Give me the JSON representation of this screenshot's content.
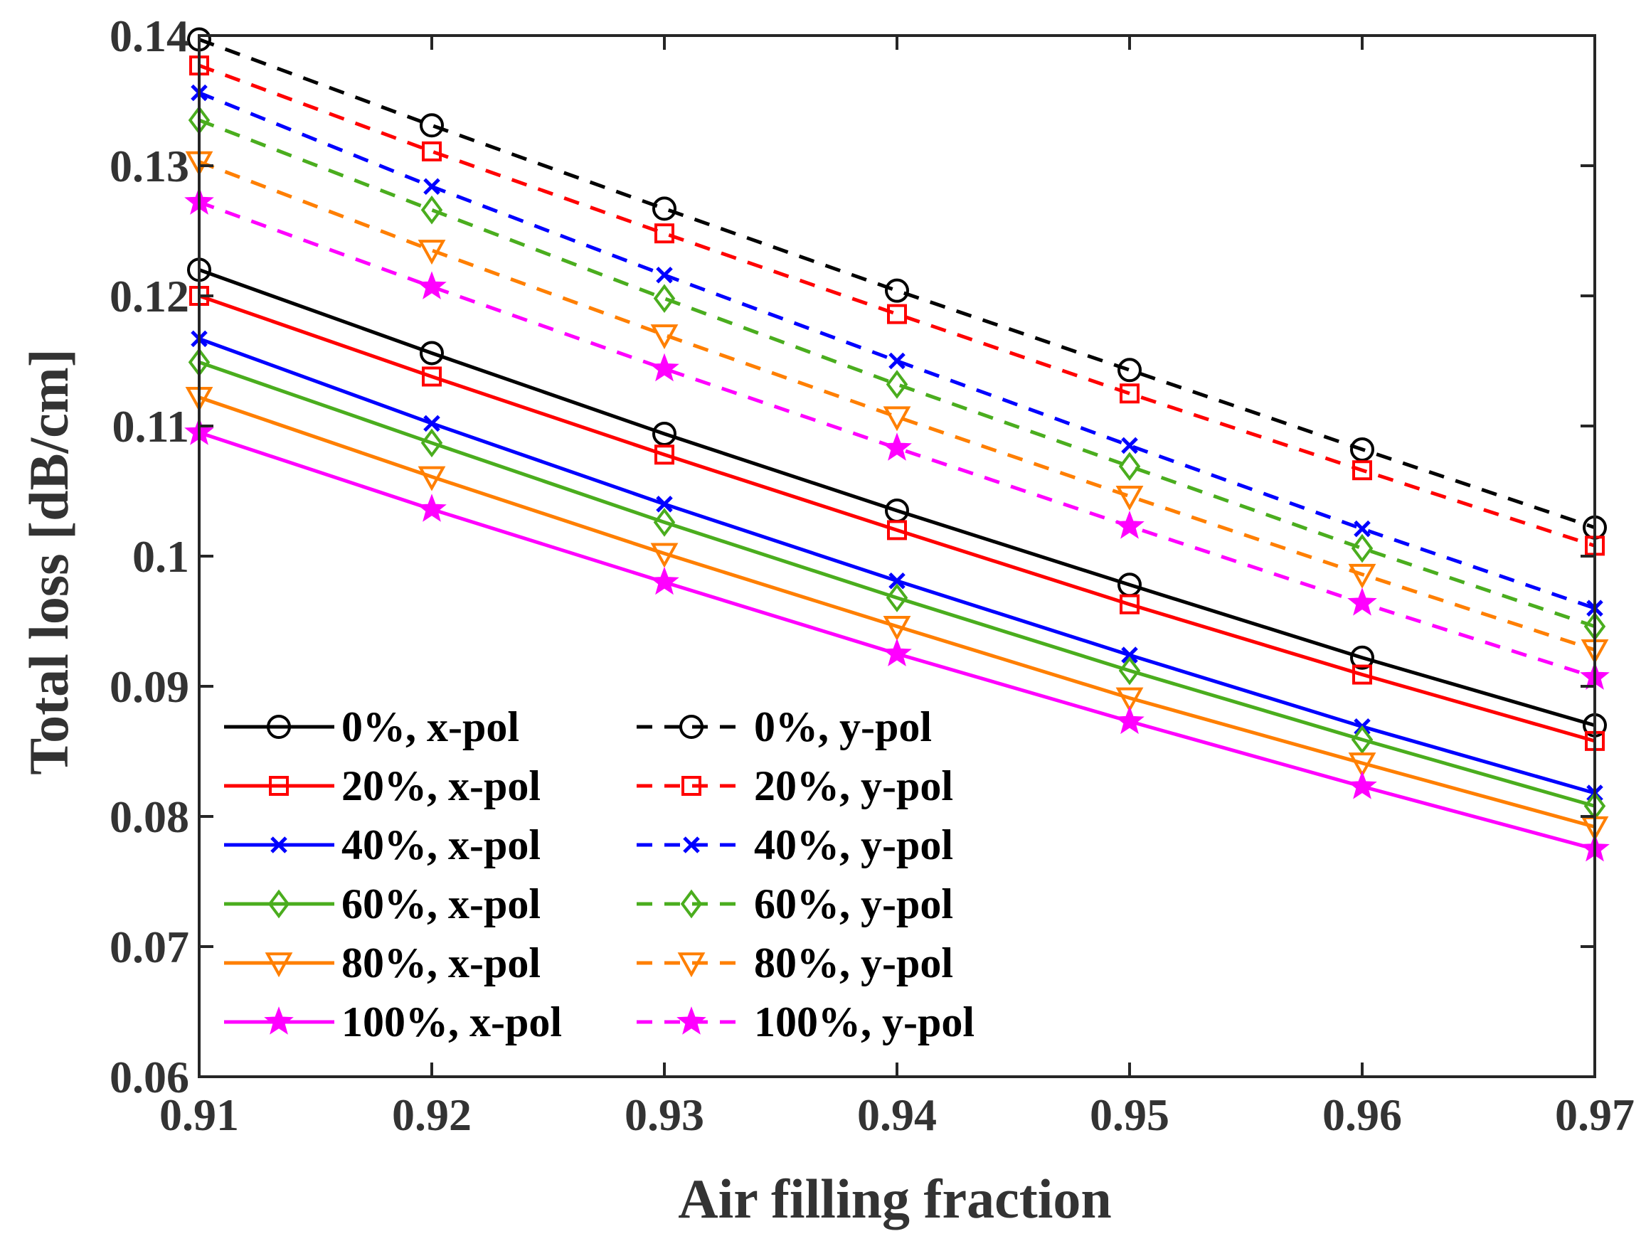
{
  "chart_data": {
    "type": "line",
    "title": "",
    "xlabel": "Air filling fraction",
    "ylabel": "Total loss [dB/cm]",
    "xlim": [
      0.91,
      0.97
    ],
    "ylim": [
      0.06,
      0.14
    ],
    "x": [
      0.91,
      0.92,
      0.93,
      0.94,
      0.95,
      0.96,
      0.97
    ],
    "x_tick_labels": [
      "0.91",
      "0.92",
      "0.93",
      "0.94",
      "0.95",
      "0.96",
      "0.97"
    ],
    "y_ticks": [
      0.06,
      0.07,
      0.08,
      0.09,
      0.1,
      0.11,
      0.12,
      0.13,
      0.14
    ],
    "y_tick_labels": [
      "0.06",
      "0.07",
      "0.08",
      "0.09",
      "0.1",
      "0.11",
      "0.12",
      "0.13",
      "0.14"
    ],
    "grid": false,
    "legend_position": "bottom-left",
    "series": [
      {
        "name": "0%, x-pol",
        "color": "#000000",
        "marker": "circle",
        "dash": "solid",
        "values": [
          0.122,
          0.1156,
          0.1094,
          0.1035,
          0.0978,
          0.0922,
          0.087
        ]
      },
      {
        "name": "20%, x-pol",
        "color": "#ff0000",
        "marker": "square",
        "dash": "solid",
        "values": [
          0.12,
          0.1138,
          0.1078,
          0.102,
          0.0963,
          0.0909,
          0.0858
        ]
      },
      {
        "name": "40%, x-pol",
        "color": "#0000ff",
        "marker": "x",
        "dash": "solid",
        "values": [
          0.1167,
          0.1102,
          0.104,
          0.0981,
          0.0924,
          0.0869,
          0.0818
        ]
      },
      {
        "name": "60%, x-pol",
        "color": "#4aad1e",
        "marker": "diamond",
        "dash": "solid",
        "values": [
          0.1149,
          0.1087,
          0.1026,
          0.0968,
          0.0912,
          0.0859,
          0.0808
        ]
      },
      {
        "name": "80%, x-pol",
        "color": "#ff7f00",
        "marker": "triangle-down",
        "dash": "solid",
        "values": [
          0.1122,
          0.1061,
          0.1002,
          0.0946,
          0.0891,
          0.0841,
          0.0792
        ]
      },
      {
        "name": "100%, x-pol",
        "color": "#ff00ff",
        "marker": "star",
        "dash": "solid",
        "values": [
          0.1095,
          0.1036,
          0.098,
          0.0925,
          0.0873,
          0.0823,
          0.0775
        ]
      },
      {
        "name": "0%, y-pol",
        "color": "#000000",
        "marker": "circle",
        "dash": "dashed",
        "values": [
          0.1397,
          0.1331,
          0.1267,
          0.1204,
          0.1143,
          0.1082,
          0.1022
        ]
      },
      {
        "name": "20%, y-pol",
        "color": "#ff0000",
        "marker": "square",
        "dash": "dashed",
        "values": [
          0.1377,
          0.1311,
          0.1248,
          0.1186,
          0.1125,
          0.1066,
          0.1008
        ]
      },
      {
        "name": "40%, y-pol",
        "color": "#0000ff",
        "marker": "x",
        "dash": "dashed",
        "values": [
          0.1356,
          0.1284,
          0.1216,
          0.115,
          0.1085,
          0.1021,
          0.096
        ]
      },
      {
        "name": "60%, y-pol",
        "color": "#4aad1e",
        "marker": "diamond",
        "dash": "dashed",
        "values": [
          0.1335,
          0.1266,
          0.1198,
          0.1132,
          0.1069,
          0.1006,
          0.0946
        ]
      },
      {
        "name": "80%, y-pol",
        "color": "#ff7f00",
        "marker": "triangle-down",
        "dash": "dashed",
        "values": [
          0.1303,
          0.1235,
          0.117,
          0.1107,
          0.1046,
          0.0986,
          0.0928
        ]
      },
      {
        "name": "100%, y-pol",
        "color": "#ff00ff",
        "marker": "star",
        "dash": "dashed",
        "values": [
          0.1272,
          0.1207,
          0.1144,
          0.1083,
          0.1023,
          0.0964,
          0.0907
        ]
      }
    ]
  }
}
